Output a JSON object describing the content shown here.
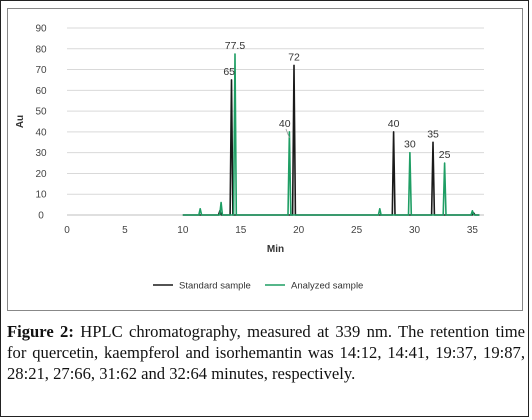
{
  "chart_data": {
    "type": "line",
    "title": "",
    "xlabel": "Min",
    "ylabel": "Au",
    "xlim": [
      0,
      36
    ],
    "ylim": [
      0,
      90
    ],
    "x_ticks": [
      0,
      5,
      10,
      15,
      20,
      25,
      30,
      35
    ],
    "y_ticks": [
      0,
      10,
      20,
      30,
      40,
      50,
      60,
      70,
      80,
      90
    ],
    "grid": "horizontal",
    "legend_position": "bottom",
    "series": [
      {
        "name": "Standard sample",
        "color": "#1a1a1a",
        "peaks": [
          {
            "x": 13.2,
            "y": 2
          },
          {
            "x": 14.2,
            "y": 65
          },
          {
            "x": 19.6,
            "y": 72
          },
          {
            "x": 28.2,
            "y": 40
          },
          {
            "x": 31.6,
            "y": 35
          },
          {
            "x": 35.1,
            "y": 1
          }
        ]
      },
      {
        "name": "Analyzed sample",
        "color": "#1f9e64",
        "peaks": [
          {
            "x": 11.5,
            "y": 3
          },
          {
            "x": 13.3,
            "y": 6
          },
          {
            "x": 14.5,
            "y": 77.5
          },
          {
            "x": 19.2,
            "y": 40
          },
          {
            "x": 27.0,
            "y": 3
          },
          {
            "x": 29.6,
            "y": 30
          },
          {
            "x": 32.6,
            "y": 25
          },
          {
            "x": 35.0,
            "y": 2
          }
        ]
      }
    ],
    "annotations": [
      {
        "text": "65",
        "x": 14.0,
        "y": 65
      },
      {
        "text": "77.5",
        "x": 14.5,
        "y": 77.5
      },
      {
        "text": "72",
        "x": 19.6,
        "y": 72
      },
      {
        "text": "40",
        "x": 18.8,
        "y": 40
      },
      {
        "text": "40",
        "x": 28.2,
        "y": 40
      },
      {
        "text": "30",
        "x": 29.6,
        "y": 30
      },
      {
        "text": "35",
        "x": 31.6,
        "y": 35
      },
      {
        "text": "25",
        "x": 32.6,
        "y": 25
      }
    ]
  },
  "caption": {
    "label": "Figure 2:",
    "text": " HPLC chromatography, measured at 339 nm. The retention time for quercetin, kaempferol and isorhemantin was 14:12, 14:41, 19:37, 19:87, 28:21, 27:66, 31:62 and 32:64 minutes, respectively."
  }
}
